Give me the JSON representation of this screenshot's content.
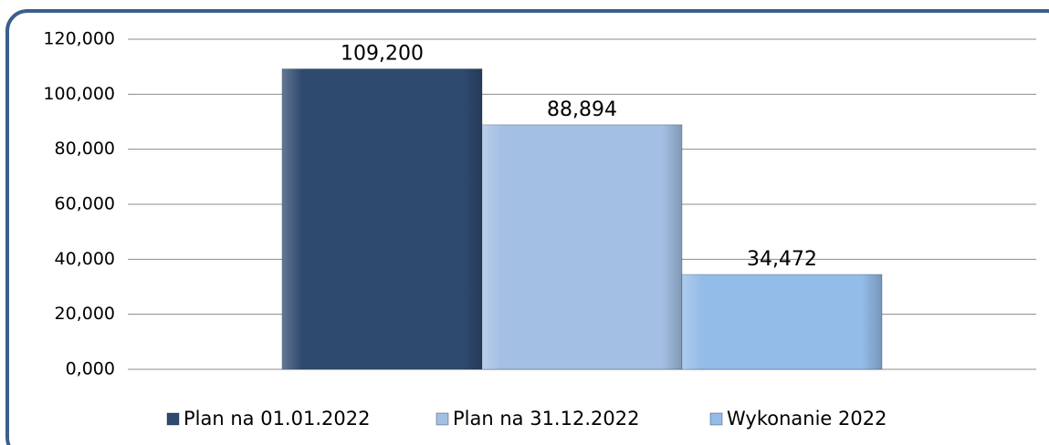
{
  "chart_data": {
    "type": "bar",
    "categories": [
      null
    ],
    "series": [
      {
        "name": "Plan na 01.01.2022",
        "color": "#2e4a6e",
        "values": [
          109200
        ],
        "value_labels": [
          "109,200"
        ]
      },
      {
        "name": "Plan na 31.12.2022",
        "color": "#a3bfe3",
        "values": [
          88894
        ],
        "value_labels": [
          "88,894"
        ]
      },
      {
        "name": "Wykonanie 2022",
        "color": "#94bce8",
        "values": [
          34472
        ],
        "value_labels": [
          "34,472"
        ]
      }
    ],
    "ylim": [
      0,
      120000
    ],
    "yticks": [
      {
        "value": 0,
        "label": "0,000"
      },
      {
        "value": 20000,
        "label": "20,000"
      },
      {
        "value": 40000,
        "label": "40,000"
      },
      {
        "value": 60000,
        "label": "60,000"
      },
      {
        "value": 80000,
        "label": "80,000"
      },
      {
        "value": 100000,
        "label": "100,000"
      },
      {
        "value": 120000,
        "label": "120,000"
      }
    ],
    "grid": true,
    "legend": "bottom"
  }
}
